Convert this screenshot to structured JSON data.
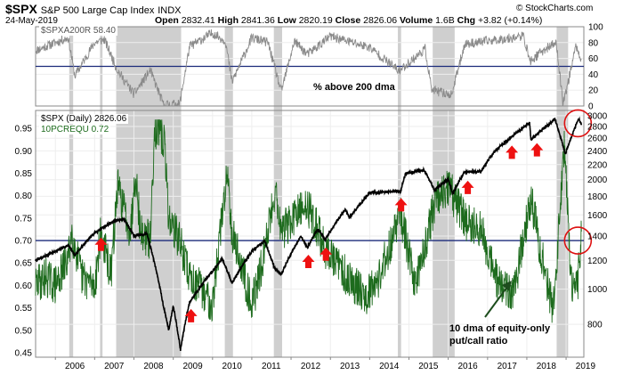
{
  "header": {
    "symbol": "$SPX",
    "name": "S&P 500 Large Cap Index",
    "exchange": "INDX",
    "date": "24-May-2019",
    "open_label": "Open",
    "open": "2832.41",
    "high_label": "High",
    "high": "2841.36",
    "low_label": "Low",
    "low": "2820.19",
    "close_label": "Close",
    "close": "2826.06",
    "volume_label": "Volume",
    "volume": "1.6B",
    "chg_label": "Chg",
    "chg": "+3.82 (+0.14%)",
    "brand": "© StockCharts.com"
  },
  "legends": {
    "top_panel": "$SPXA200R 58.40",
    "spx": "$SPX (Daily) 2826.06",
    "putcall": "10PCREQU 0.72"
  },
  "annotations": {
    "dma_label": "% above 200 dma",
    "putcall_line1": "10 dma of equity-only",
    "putcall_line2": "put/call ratio"
  },
  "colors": {
    "spx_line": "#000000",
    "putcall_line": "#1d6b1d",
    "breadth_line": "#8a8a8a",
    "reference_line": "#1b2a7a",
    "shading": "#cfcfcf",
    "arrow": "#ee1111",
    "circle": "#dd1111"
  },
  "chart_data": [
    {
      "type": "line",
      "panel": "top",
      "series": [
        {
          "name": "$SPXA200R",
          "x": [
            "2005-07-01",
            "2006-01-01",
            "2006-05-01",
            "2006-07-01",
            "2007-01-01",
            "2007-04-01",
            "2007-08-01",
            "2008-01-01",
            "2008-06-01",
            "2008-10-01",
            "2009-03-01",
            "2009-06-01",
            "2010-01-01",
            "2010-05-01",
            "2010-07-01",
            "2011-01-01",
            "2011-06-01",
            "2011-10-01",
            "2012-02-01",
            "2012-06-01",
            "2013-01-01",
            "2014-01-01",
            "2014-10-01",
            "2015-06-01",
            "2015-08-01",
            "2016-02-01",
            "2016-06-01",
            "2017-01-01",
            "2017-12-01",
            "2018-02-01",
            "2018-06-01",
            "2018-10-01",
            "2018-12-01",
            "2019-01-01",
            "2019-04-01",
            "2019-05-24"
          ],
          "values": [
            70,
            80,
            86,
            38,
            80,
            84,
            45,
            15,
            45,
            2,
            2,
            75,
            92,
            82,
            30,
            86,
            80,
            18,
            82,
            65,
            88,
            74,
            44,
            72,
            20,
            14,
            78,
            82,
            88,
            56,
            70,
            80,
            6,
            18,
            76,
            58.4
          ]
        }
      ],
      "y_ticks": [
        0,
        20,
        40,
        60,
        80,
        100
      ],
      "ylim": [
        0,
        100
      ],
      "reference_level": 50
    },
    {
      "type": "line",
      "panel": "main",
      "y_scale": "log",
      "series": [
        {
          "name": "$SPX (Daily)",
          "x": [
            "2005-07-01",
            "2006-01-01",
            "2006-05-01",
            "2006-07-01",
            "2007-01-01",
            "2007-07-01",
            "2007-10-01",
            "2008-01-01",
            "2008-05-01",
            "2008-10-01",
            "2008-11-20",
            "2009-01-01",
            "2009-03-09",
            "2009-06-01",
            "2010-01-01",
            "2010-04-01",
            "2010-07-01",
            "2011-01-01",
            "2011-04-29",
            "2011-08-01",
            "2011-10-03",
            "2012-04-01",
            "2012-06-01",
            "2012-09-01",
            "2012-11-15",
            "2013-05-20",
            "2013-06-25",
            "2014-01-01",
            "2014-10-15",
            "2014-12-01",
            "2015-05-20",
            "2015-08-25",
            "2016-01-01",
            "2016-02-11",
            "2016-06-01",
            "2016-11-01",
            "2017-03-01",
            "2018-01-26",
            "2018-02-08",
            "2018-09-20",
            "2018-12-24",
            "2019-04-30",
            "2019-05-24"
          ],
          "values": [
            1200,
            1270,
            1320,
            1240,
            1430,
            1540,
            1560,
            1400,
            1420,
            900,
            770,
            900,
            680,
            920,
            1120,
            1210,
            1040,
            1270,
            1360,
            1140,
            1100,
            1400,
            1300,
            1460,
            1370,
            1660,
            1570,
            1840,
            1860,
            2080,
            2130,
            1870,
            2010,
            1830,
            2100,
            2110,
            2380,
            2870,
            2580,
            2930,
            2350,
            2950,
            2826.06
          ]
        }
      ],
      "y_ticks": [
        800,
        1000,
        1200,
        1400,
        1600,
        1800,
        2000,
        2200,
        2400,
        2600,
        2800,
        3000
      ],
      "ylim": [
        650,
        3100
      ],
      "reference_level": 1600,
      "x_ticks": [
        "2006",
        "2007",
        "2008",
        "2009",
        "2010",
        "2011",
        "2012",
        "2013",
        "2014",
        "2015",
        "2016",
        "2017",
        "2018",
        "2019"
      ],
      "shaded_periods": [
        [
          "2006-05-10",
          "2006-06-15"
        ],
        [
          "2007-02-20",
          "2007-03-15"
        ],
        [
          "2007-07-20",
          "2009-03-15"
        ],
        [
          "2010-04-25",
          "2010-07-10"
        ],
        [
          "2011-07-25",
          "2011-10-10"
        ],
        [
          "2014-09-20",
          "2014-10-20"
        ],
        [
          "2015-08-10",
          "2016-03-01"
        ],
        [
          "2018-10-05",
          "2019-01-20"
        ]
      ],
      "buy_arrows": [
        "2007-03-01",
        "2009-06-15",
        "2012-06-10",
        "2012-11-20",
        "2014-10-20",
        "2016-07-01",
        "2017-08-15",
        "2018-04-05"
      ]
    },
    {
      "type": "line",
      "panel": "main",
      "series": [
        {
          "name": "10PCREQU",
          "x": [
            "2005-07-01",
            "2005-10-01",
            "2006-01-01",
            "2006-05-01",
            "2006-06-01",
            "2006-09-01",
            "2007-01-01",
            "2007-03-01",
            "2007-06-01",
            "2007-08-01",
            "2007-12-01",
            "2008-01-15",
            "2008-03-01",
            "2008-06-01",
            "2008-07-10",
            "2008-10-10",
            "2008-11-20",
            "2009-03-01",
            "2009-06-01",
            "2010-01-01",
            "2010-05-20",
            "2010-07-01",
            "2011-01-01",
            "2011-03-15",
            "2011-08-10",
            "2011-10-01",
            "2012-06-01",
            "2012-11-15",
            "2013-06-01",
            "2013-12-01",
            "2014-04-01",
            "2014-10-15",
            "2015-03-01",
            "2015-08-25",
            "2016-01-20",
            "2016-02-11",
            "2016-06-25",
            "2016-11-04",
            "2017-04-15",
            "2017-09-01",
            "2018-02-09",
            "2018-04-05",
            "2018-09-01",
            "2018-12-21",
            "2019-02-15",
            "2019-04-15",
            "2019-05-24"
          ],
          "values": [
            0.6,
            0.62,
            0.6,
            0.66,
            0.72,
            0.62,
            0.6,
            0.72,
            0.62,
            0.82,
            0.72,
            0.86,
            0.72,
            0.7,
            0.95,
            0.92,
            0.75,
            0.7,
            0.62,
            0.56,
            0.86,
            0.72,
            0.56,
            0.62,
            0.82,
            0.72,
            0.78,
            0.68,
            0.62,
            0.58,
            0.62,
            0.76,
            0.6,
            0.78,
            0.82,
            0.8,
            0.74,
            0.72,
            0.6,
            0.58,
            0.8,
            0.72,
            0.54,
            0.92,
            0.6,
            0.59,
            0.72
          ]
        }
      ],
      "y_ticks": [
        0.45,
        0.5,
        0.55,
        0.6,
        0.65,
        0.7,
        0.75,
        0.8,
        0.85,
        0.9,
        0.95
      ],
      "ylim": [
        0.44,
        0.99
      ],
      "reference_level": 0.7
    }
  ]
}
